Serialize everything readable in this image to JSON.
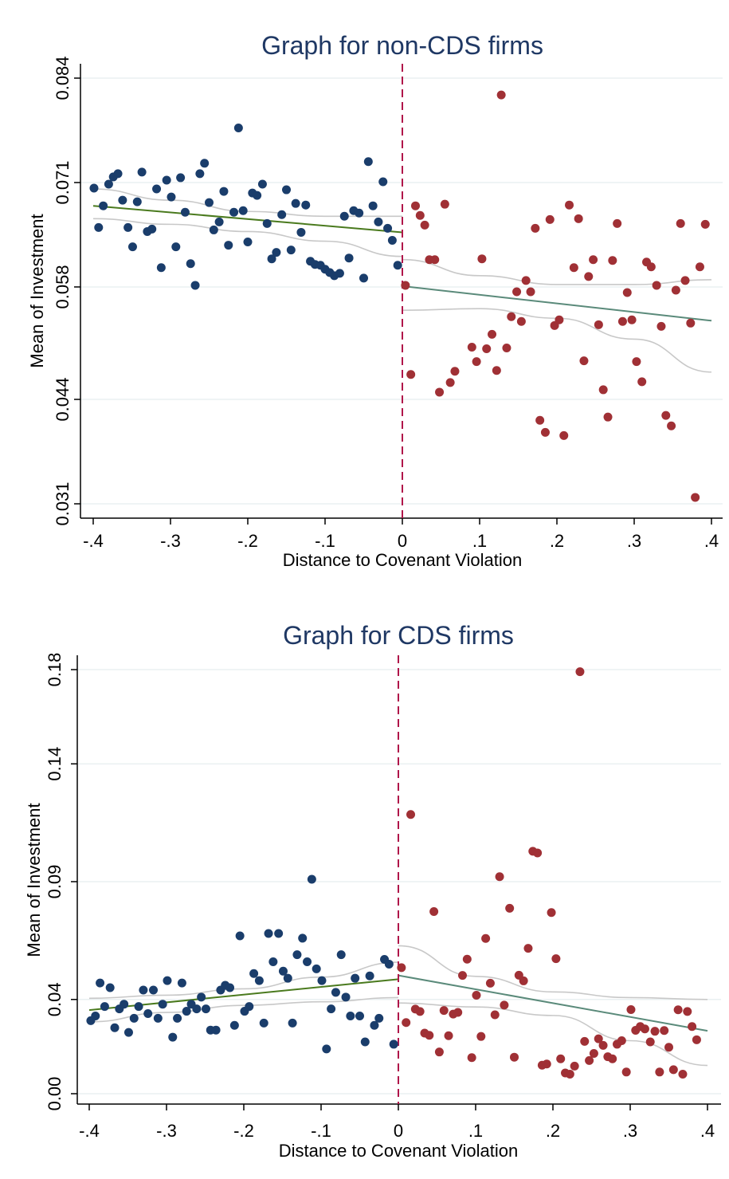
{
  "chart_data": [
    {
      "type": "scatter",
      "title": "Graph for non-CDS firms",
      "xlabel": "Distance to Covenant Violation",
      "ylabel": "Mean of Investment",
      "xlim": [
        -0.4,
        0.4
      ],
      "ylim": [
        0.031,
        0.084
      ],
      "xticks": [
        -0.4,
        -0.3,
        -0.2,
        -0.1,
        0,
        0.1,
        0.2,
        0.3,
        0.4
      ],
      "xtick_labels": [
        "-.4",
        "-.3",
        "-.2",
        "-.1",
        "0",
        ".1",
        ".2",
        ".3",
        ".4"
      ],
      "yticks": [
        0.031,
        0.044,
        0.058,
        0.071,
        0.084
      ],
      "ytick_labels": [
        "0.031",
        "0.044",
        "0.058",
        "0.071",
        "0.084"
      ],
      "grid": true,
      "cutoff": 0,
      "colors": {
        "left": "#1a3d6b",
        "right": "#a03035",
        "fit_left": "#4a7a1e",
        "fit_right": "#5a8a7a",
        "ci": "#c8c8c8",
        "cutoff": "#b0154a"
      },
      "series": [
        {
          "x": [
            -0.399,
            -0.393,
            -0.387,
            -0.38,
            -0.374,
            -0.368,
            -0.362,
            -0.355,
            -0.349,
            -0.343,
            -0.337,
            -0.33,
            -0.324,
            -0.318,
            -0.312,
            -0.305,
            -0.299,
            -0.293,
            -0.287,
            -0.281,
            -0.274,
            -0.268,
            -0.262,
            -0.256,
            -0.25,
            -0.244,
            -0.237,
            -0.231,
            -0.225,
            -0.218,
            -0.212,
            -0.206,
            -0.2,
            -0.194,
            -0.188,
            -0.181,
            -0.175,
            -0.169,
            -0.163,
            -0.156,
            -0.15,
            -0.144,
            -0.138,
            -0.131,
            -0.125,
            -0.119,
            -0.113,
            -0.106,
            -0.1,
            -0.094,
            -0.088,
            -0.081,
            -0.075,
            -0.069,
            -0.063,
            -0.056,
            -0.05,
            -0.044,
            -0.038,
            -0.031,
            -0.025,
            -0.019,
            -0.013,
            -0.006
          ],
          "y": [
            0.0703,
            0.0654,
            0.0681,
            0.0708,
            0.0717,
            0.0721,
            0.0688,
            0.0654,
            0.063,
            0.0686,
            0.0723,
            0.0649,
            0.0652,
            0.0702,
            0.0604,
            0.0713,
            0.0692,
            0.063,
            0.0716,
            0.0673,
            0.0609,
            0.0582,
            0.0721,
            0.0734,
            0.0685,
            0.0651,
            0.0661,
            0.0699,
            0.0632,
            0.0673,
            0.0778,
            0.0675,
            0.0636,
            0.0697,
            0.0694,
            0.0708,
            0.0659,
            0.0615,
            0.0623,
            0.067,
            0.0701,
            0.0626,
            0.0684,
            0.0648,
            0.0682,
            0.0612,
            0.0608,
            0.0607,
            0.0602,
            0.0598,
            0.0594,
            0.0597,
            0.0668,
            0.0616,
            0.0675,
            0.0672,
            0.0591,
            0.0736,
            0.0681,
            0.0661,
            0.0711,
            0.0653,
            0.0638,
            0.0607
          ]
        },
        {
          "x": [
            0.004,
            0.011,
            0.017,
            0.023,
            0.029,
            0.035,
            0.042,
            0.048,
            0.055,
            0.062,
            0.068,
            0.09,
            0.096,
            0.103,
            0.109,
            0.116,
            0.122,
            0.128,
            0.135,
            0.141,
            0.148,
            0.154,
            0.16,
            0.166,
            0.172,
            0.178,
            0.185,
            0.191,
            0.197,
            0.203,
            0.209,
            0.216,
            0.222,
            0.228,
            0.235,
            0.241,
            0.247,
            0.254,
            0.26,
            0.266,
            0.272,
            0.278,
            0.285,
            0.291,
            0.297,
            0.303,
            0.31,
            0.316,
            0.322,
            0.329,
            0.335,
            0.341,
            0.348,
            0.354,
            0.36,
            0.366,
            0.373,
            0.379,
            0.385,
            0.392
          ],
          "y": [
            0.0582,
            0.0471,
            0.0681,
            0.0669,
            0.0657,
            0.0614,
            0.0614,
            0.0449,
            0.0683,
            0.0461,
            0.0475,
            0.0505,
            0.0487,
            0.0615,
            0.0503,
            0.0521,
            0.0476,
            0.0819,
            0.0504,
            0.0543,
            0.0574,
            0.0537,
            0.0588,
            0.0574,
            0.0653,
            0.0414,
            0.0399,
            0.0664,
            0.0532,
            0.0539,
            0.0395,
            0.0682,
            0.0604,
            0.0665,
            0.0488,
            0.0593,
            0.0614,
            0.0533,
            0.0452,
            0.0418,
            0.0613,
            0.0659,
            0.0537,
            0.0573,
            0.0539,
            0.0487,
            0.0462,
            0.0611,
            0.0605,
            0.0582,
            0.0531,
            0.042,
            0.0407,
            0.0576,
            0.0659,
            0.0588,
            0.0535,
            0.0318,
            0.0605,
            0.0658
          ]
        }
      ],
      "fit_left": {
        "x": [
          -0.4,
          0
        ],
        "y": [
          0.0681,
          0.0648
        ]
      },
      "fit_right": {
        "x": [
          0,
          0.4
        ],
        "y": [
          0.0581,
          0.0538
        ]
      },
      "ci_left_upper": {
        "x": [
          -0.4,
          -0.3,
          -0.2,
          -0.1,
          0
        ],
        "y": [
          0.0702,
          0.0688,
          0.0674,
          0.0668,
          0.0668
        ]
      },
      "ci_left_lower": {
        "x": [
          -0.4,
          -0.3,
          -0.2,
          -0.1,
          0
        ],
        "y": [
          0.0665,
          0.0658,
          0.0649,
          0.0637,
          0.0618
        ]
      },
      "ci_right_upper": {
        "x": [
          0,
          0.1,
          0.2,
          0.3,
          0.4
        ],
        "y": [
          0.0614,
          0.0594,
          0.0583,
          0.0583,
          0.0589
        ]
      },
      "ci_right_lower": {
        "x": [
          0,
          0.1,
          0.2,
          0.3,
          0.4
        ],
        "y": [
          0.0551,
          0.0553,
          0.0541,
          0.0515,
          0.0474
        ]
      }
    },
    {
      "type": "scatter",
      "title": "Graph for CDS firms",
      "xlabel": "Distance to Covenant Violation",
      "ylabel": "Mean of Investment",
      "xlim": [
        -0.4,
        0.4
      ],
      "ylim": [
        0.0,
        0.18
      ],
      "xticks": [
        -0.4,
        -0.3,
        -0.2,
        -0.1,
        0,
        0.1,
        0.2,
        0.3,
        0.4
      ],
      "xtick_labels": [
        "-.4",
        "-.3",
        "-.2",
        "-.1",
        "0",
        ".1",
        ".2",
        ".3",
        ".4"
      ],
      "yticks": [
        0.0,
        0.04,
        0.09,
        0.14,
        0.18
      ],
      "ytick_labels": [
        "0.00",
        "0.04",
        "0.09",
        "0.14",
        "0.18"
      ],
      "grid": true,
      "cutoff": 0,
      "colors": {
        "left": "#1a3d6b",
        "right": "#a03035",
        "fit_left": "#4a7a1e",
        "fit_right": "#5a8a7a",
        "ci": "#c8c8c8",
        "cutoff": "#b0154a"
      },
      "series": [
        {
          "x": [
            -0.398,
            -0.392,
            -0.386,
            -0.38,
            -0.373,
            -0.367,
            -0.361,
            -0.355,
            -0.349,
            -0.342,
            -0.336,
            -0.33,
            -0.324,
            -0.317,
            -0.311,
            -0.305,
            -0.299,
            -0.292,
            -0.286,
            -0.28,
            -0.274,
            -0.268,
            -0.261,
            -0.255,
            -0.249,
            -0.243,
            -0.236,
            -0.23,
            -0.224,
            -0.218,
            -0.212,
            -0.205,
            -0.199,
            -0.193,
            -0.187,
            -0.18,
            -0.174,
            -0.168,
            -0.162,
            -0.155,
            -0.149,
            -0.143,
            -0.137,
            -0.131,
            -0.124,
            -0.118,
            -0.112,
            -0.106,
            -0.099,
            -0.093,
            -0.087,
            -0.081,
            -0.074,
            -0.068,
            -0.062,
            -0.056,
            -0.05,
            -0.043,
            -0.037,
            -0.031,
            -0.025,
            -0.018,
            -0.012,
            -0.006
          ],
          "y": [
            0.031,
            0.033,
            0.047,
            0.037,
            0.045,
            0.028,
            0.036,
            0.038,
            0.026,
            0.032,
            0.037,
            0.044,
            0.034,
            0.044,
            0.032,
            0.038,
            0.048,
            0.024,
            0.032,
            0.047,
            0.035,
            0.038,
            0.036,
            0.041,
            0.036,
            0.027,
            0.027,
            0.044,
            0.046,
            0.045,
            0.029,
            0.067,
            0.035,
            0.037,
            0.051,
            0.048,
            0.03,
            0.068,
            0.056,
            0.068,
            0.052,
            0.049,
            0.03,
            0.059,
            0.066,
            0.056,
            0.091,
            0.053,
            0.048,
            0.019,
            0.036,
            0.043,
            0.059,
            0.041,
            0.033,
            0.049,
            0.033,
            0.022,
            0.05,
            0.029,
            0.032,
            0.057,
            0.055,
            0.021
          ]
        },
        {
          "x": [
            0.004,
            0.01,
            0.016,
            0.022,
            0.028,
            0.034,
            0.04,
            0.046,
            0.053,
            0.059,
            0.065,
            0.071,
            0.077,
            0.083,
            0.089,
            0.095,
            0.101,
            0.107,
            0.113,
            0.119,
            0.125,
            0.131,
            0.137,
            0.144,
            0.15,
            0.156,
            0.162,
            0.168,
            0.174,
            0.18,
            0.186,
            0.192,
            0.198,
            0.204,
            0.21,
            0.216,
            0.222,
            0.228,
            0.235,
            0.241,
            0.247,
            0.253,
            0.259,
            0.265,
            0.271,
            0.277,
            0.283,
            0.289,
            0.295,
            0.301,
            0.307,
            0.313,
            0.319,
            0.326,
            0.332,
            0.338,
            0.344,
            0.35,
            0.356,
            0.362,
            0.368,
            0.374,
            0.38,
            0.386
          ],
          "y": [
            0.0535,
            0.0302,
            0.1185,
            0.0359,
            0.0349,
            0.0257,
            0.0248,
            0.0773,
            0.0177,
            0.0353,
            0.0246,
            0.0338,
            0.0345,
            0.0502,
            0.0571,
            0.0153,
            0.0418,
            0.0243,
            0.0659,
            0.0469,
            0.0335,
            0.0921,
            0.0376,
            0.0787,
            0.0155,
            0.0503,
            0.0479,
            0.0617,
            0.1029,
            0.1022,
            0.0121,
            0.0126,
            0.0769,
            0.0573,
            0.0148,
            0.0088,
            0.0083,
            0.0117,
            0.1791,
            0.0222,
            0.0141,
            0.0171,
            0.0233,
            0.0205,
            0.0157,
            0.0148,
            0.021,
            0.0225,
            0.0092,
            0.0357,
            0.0269,
            0.0285,
            0.0275,
            0.022,
            0.0265,
            0.0092,
            0.0268,
            0.0197,
            0.0102,
            0.0356,
            0.0083,
            0.0349,
            0.0285,
            0.0229
          ]
        }
      ],
      "fit_left": {
        "x": [
          -0.4,
          0
        ],
        "y": [
          0.0355,
          0.0486
        ]
      },
      "fit_right": {
        "x": [
          0,
          0.4
        ],
        "y": [
          0.0502,
          0.0267
        ]
      },
      "ci_left_upper": {
        "x": [
          -0.4,
          -0.3,
          -0.2,
          -0.1,
          0
        ],
        "y": [
          0.0405,
          0.0418,
          0.0445,
          0.0495,
          0.0558
        ]
      },
      "ci_left_lower": {
        "x": [
          -0.4,
          -0.3,
          -0.2,
          -0.1,
          0
        ],
        "y": [
          0.0305,
          0.0345,
          0.0375,
          0.039,
          0.0408
        ]
      },
      "ci_right_upper": {
        "x": [
          0,
          0.1,
          0.2,
          0.3,
          0.4
        ],
        "y": [
          0.0628,
          0.0498,
          0.0432,
          0.0408,
          0.04
        ]
      },
      "ci_right_lower": {
        "x": [
          0,
          0.1,
          0.2,
          0.3,
          0.4
        ],
        "y": [
          0.0385,
          0.0368,
          0.0332,
          0.0225,
          0.012
        ]
      }
    }
  ]
}
